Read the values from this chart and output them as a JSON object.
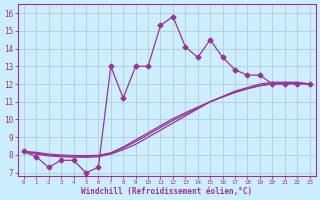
{
  "xlabel": "Windchill (Refroidissement éolien,°C)",
  "bg_color": "#cceeff",
  "grid_color": "#b0c8c8",
  "line_color": "#993399",
  "xlim_min": -0.5,
  "xlim_max": 23.5,
  "ylim_min": 6.8,
  "ylim_max": 16.5,
  "xticks": [
    0,
    1,
    2,
    3,
    4,
    5,
    6,
    7,
    8,
    9,
    10,
    11,
    12,
    13,
    14,
    15,
    16,
    17,
    18,
    19,
    20,
    21,
    22,
    23
  ],
  "yticks": [
    7,
    8,
    9,
    10,
    11,
    12,
    13,
    14,
    15,
    16
  ],
  "main_y": [
    8.2,
    7.9,
    7.3,
    7.7,
    7.7,
    7.0,
    7.3,
    13.0,
    11.2,
    13.0,
    13.0,
    15.3,
    15.8,
    14.1,
    13.5,
    14.5,
    13.5,
    12.8,
    12.5,
    12.5,
    12.0,
    12.0,
    12.0,
    12.0
  ],
  "smooth1_y": [
    8.2,
    8.05,
    7.95,
    7.9,
    7.88,
    7.87,
    7.9,
    8.05,
    8.3,
    8.6,
    9.0,
    9.4,
    9.8,
    10.2,
    10.6,
    11.0,
    11.3,
    11.6,
    11.8,
    12.0,
    12.1,
    12.1,
    12.1,
    12.0
  ],
  "smooth2_y": [
    8.2,
    8.1,
    8.0,
    7.95,
    7.93,
    7.92,
    7.95,
    8.1,
    8.4,
    8.75,
    9.15,
    9.55,
    9.95,
    10.3,
    10.65,
    11.0,
    11.28,
    11.55,
    11.75,
    11.92,
    12.02,
    12.05,
    12.07,
    12.0
  ],
  "smooth3_y": [
    8.2,
    8.15,
    8.05,
    8.0,
    7.97,
    7.96,
    7.98,
    8.12,
    8.45,
    8.85,
    9.25,
    9.65,
    10.05,
    10.38,
    10.7,
    11.0,
    11.27,
    11.52,
    11.73,
    11.9,
    12.0,
    12.03,
    12.06,
    12.0
  ],
  "marker": "D",
  "markersize": 2.5,
  "linewidth": 0.9
}
